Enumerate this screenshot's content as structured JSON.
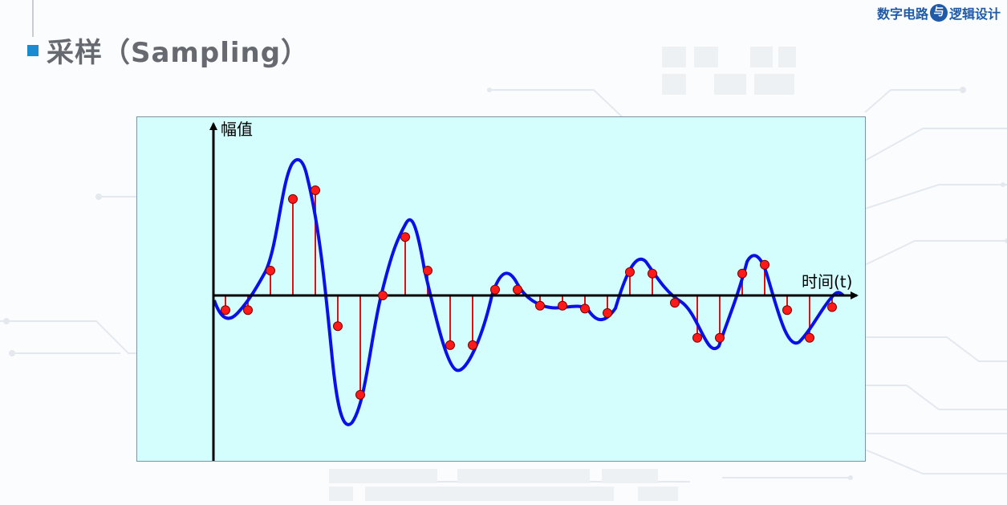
{
  "header": {
    "title": "采样（Sampling）",
    "logo_left": "数字电路",
    "logo_mark": "与",
    "logo_right": "逻辑设计"
  },
  "colors": {
    "accent": "#1a8bd0",
    "diagram_background": "#d4fdfd",
    "signal_curve": "#0b10e8",
    "sample_stem": "#e01010",
    "sample_point": "#ff1a1a",
    "axis": "#000000"
  },
  "diagram": {
    "y_axis_label": "幅值",
    "x_axis_label": "时间(t)",
    "samples": [
      -0.1,
      -0.1,
      0.17,
      0.66,
      0.72,
      -0.21,
      -0.68,
      0.0,
      0.4,
      0.17,
      -0.34,
      -0.34,
      0.04,
      0.04,
      -0.07,
      -0.07,
      -0.09,
      -0.12,
      0.16,
      0.15,
      -0.05,
      -0.29,
      -0.29,
      0.15,
      0.21,
      -0.1,
      -0.29,
      -0.08
    ]
  }
}
